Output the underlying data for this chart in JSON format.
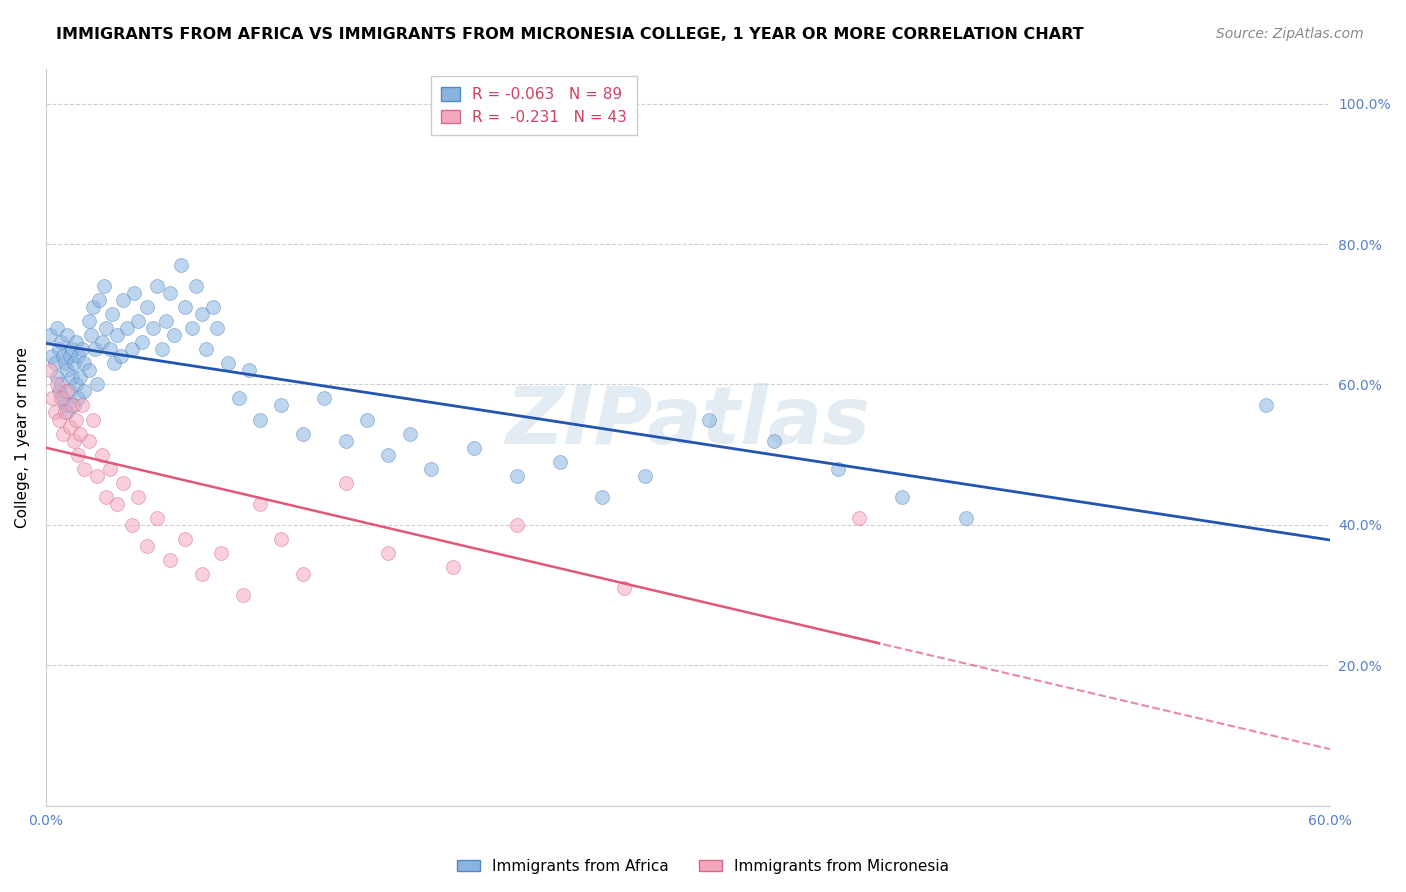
{
  "title": "IMMIGRANTS FROM AFRICA VS IMMIGRANTS FROM MICRONESIA COLLEGE, 1 YEAR OR MORE CORRELATION CHART",
  "source": "Source: ZipAtlas.com",
  "ylabel": "College, 1 year or more",
  "xlim": [
    0.0,
    0.6
  ],
  "ylim": [
    0.0,
    1.05
  ],
  "xtick_labels": [
    "0.0%",
    "",
    "",
    "",
    "",
    "",
    "60.0%"
  ],
  "xtick_values": [
    0.0,
    0.1,
    0.2,
    0.3,
    0.4,
    0.5,
    0.6
  ],
  "ytick_values": [
    0.0,
    0.2,
    0.4,
    0.6,
    0.8,
    1.0
  ],
  "ytick_labels_right": [
    "",
    "20.0%",
    "40.0%",
    "60.0%",
    "80.0%",
    "100.0%"
  ],
  "africa_color": "#8ab4e0",
  "africa_edge_color": "#5588c0",
  "micronesia_color": "#f4a8be",
  "micronesia_edge_color": "#d86888",
  "africa_line_color": "#2255b0",
  "micronesia_line_color": "#e05878",
  "africa_R": -0.063,
  "africa_N": 89,
  "micronesia_R": -0.231,
  "micronesia_N": 43,
  "grid_color": "#d0d0d0",
  "background_color": "#ffffff",
  "africa_x": [
    0.002,
    0.003,
    0.004,
    0.005,
    0.005,
    0.006,
    0.006,
    0.007,
    0.007,
    0.008,
    0.008,
    0.009,
    0.009,
    0.01,
    0.01,
    0.01,
    0.011,
    0.011,
    0.012,
    0.012,
    0.013,
    0.013,
    0.014,
    0.014,
    0.015,
    0.015,
    0.016,
    0.017,
    0.018,
    0.018,
    0.02,
    0.02,
    0.021,
    0.022,
    0.023,
    0.024,
    0.025,
    0.026,
    0.027,
    0.028,
    0.03,
    0.031,
    0.032,
    0.033,
    0.035,
    0.036,
    0.038,
    0.04,
    0.041,
    0.043,
    0.045,
    0.047,
    0.05,
    0.052,
    0.054,
    0.056,
    0.058,
    0.06,
    0.063,
    0.065,
    0.068,
    0.07,
    0.073,
    0.075,
    0.078,
    0.08,
    0.085,
    0.09,
    0.095,
    0.1,
    0.11,
    0.12,
    0.13,
    0.14,
    0.15,
    0.16,
    0.17,
    0.18,
    0.2,
    0.22,
    0.24,
    0.26,
    0.28,
    0.31,
    0.34,
    0.37,
    0.4,
    0.43,
    0.57
  ],
  "africa_y": [
    0.67,
    0.64,
    0.63,
    0.68,
    0.61,
    0.65,
    0.59,
    0.66,
    0.6,
    0.64,
    0.58,
    0.63,
    0.57,
    0.67,
    0.62,
    0.56,
    0.64,
    0.59,
    0.65,
    0.61,
    0.63,
    0.57,
    0.66,
    0.6,
    0.64,
    0.58,
    0.61,
    0.65,
    0.63,
    0.59,
    0.69,
    0.62,
    0.67,
    0.71,
    0.65,
    0.6,
    0.72,
    0.66,
    0.74,
    0.68,
    0.65,
    0.7,
    0.63,
    0.67,
    0.64,
    0.72,
    0.68,
    0.65,
    0.73,
    0.69,
    0.66,
    0.71,
    0.68,
    0.74,
    0.65,
    0.69,
    0.73,
    0.67,
    0.77,
    0.71,
    0.68,
    0.74,
    0.7,
    0.65,
    0.71,
    0.68,
    0.63,
    0.58,
    0.62,
    0.55,
    0.57,
    0.53,
    0.58,
    0.52,
    0.55,
    0.5,
    0.53,
    0.48,
    0.51,
    0.47,
    0.49,
    0.44,
    0.47,
    0.55,
    0.52,
    0.48,
    0.44,
    0.41,
    0.57
  ],
  "micronesia_x": [
    0.002,
    0.003,
    0.004,
    0.005,
    0.006,
    0.007,
    0.008,
    0.009,
    0.01,
    0.011,
    0.012,
    0.013,
    0.014,
    0.015,
    0.016,
    0.017,
    0.018,
    0.02,
    0.022,
    0.024,
    0.026,
    0.028,
    0.03,
    0.033,
    0.036,
    0.04,
    0.043,
    0.047,
    0.052,
    0.058,
    0.065,
    0.073,
    0.082,
    0.092,
    0.1,
    0.11,
    0.12,
    0.14,
    0.16,
    0.19,
    0.22,
    0.27,
    0.38
  ],
  "micronesia_y": [
    0.62,
    0.58,
    0.56,
    0.6,
    0.55,
    0.58,
    0.53,
    0.56,
    0.59,
    0.54,
    0.57,
    0.52,
    0.55,
    0.5,
    0.53,
    0.57,
    0.48,
    0.52,
    0.55,
    0.47,
    0.5,
    0.44,
    0.48,
    0.43,
    0.46,
    0.4,
    0.44,
    0.37,
    0.41,
    0.35,
    0.38,
    0.33,
    0.36,
    0.3,
    0.43,
    0.38,
    0.33,
    0.46,
    0.36,
    0.34,
    0.4,
    0.31,
    0.41
  ],
  "marker_size": 100,
  "marker_alpha": 0.55,
  "title_fontsize": 11.5,
  "axis_label_fontsize": 11,
  "tick_fontsize": 10,
  "legend_fontsize": 11,
  "source_fontsize": 10,
  "watermark_text": "ZIPatlas",
  "legend_africa_label": "R = -0.063   N = 89",
  "legend_micronesia_label": "R =  -0.231   N = 43",
  "bottom_legend_africa": "Immigrants from Africa",
  "bottom_legend_micronesia": "Immigrants from Micronesia"
}
